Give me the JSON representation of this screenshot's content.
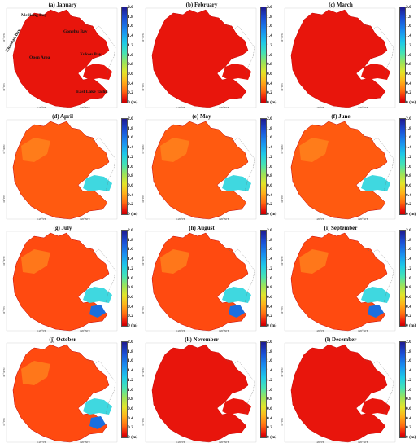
{
  "panels": [
    {
      "title": "(a) January",
      "scheme": "red"
    },
    {
      "title": "(b) February",
      "scheme": "red"
    },
    {
      "title": "(c) March",
      "scheme": "red"
    },
    {
      "title": "(d) April",
      "scheme": "orange"
    },
    {
      "title": "(e) May",
      "scheme": "orange"
    },
    {
      "title": "(f) June",
      "scheme": "orange"
    },
    {
      "title": "(g) July",
      "scheme": "mixed"
    },
    {
      "title": "(h) August",
      "scheme": "mixed"
    },
    {
      "title": "(i) September",
      "scheme": "mixed"
    },
    {
      "title": "(j) October",
      "scheme": "mixed"
    },
    {
      "title": "(k) November",
      "scheme": "red"
    },
    {
      "title": "(l) December",
      "scheme": "red"
    }
  ],
  "colorbar": {
    "ticks": [
      "2.0",
      "1.8",
      "1.6",
      "1.4",
      "1.2",
      "1.0",
      "0.8",
      "0.6",
      "0.4",
      "0.2",
      "0 (m)"
    ]
  },
  "region_labels": {
    "meiliang_bay": "Meiliang Bay",
    "zhushan_bay": "Zhushan Bay",
    "gonghu_bay": "Gonghu Bay",
    "open_area": "Open Area",
    "xukou_bay": "Xukou Bay",
    "east_lake_taihu": "East Lake Taihu"
  },
  "axis_labels": {
    "lon1": "120°0'E",
    "lon2": "120°30'E",
    "lat1": "31°30'N",
    "lat2": "31°0'N"
  },
  "colors": {
    "lake_red": "#e8150c",
    "lake_orange": "#ff5a10",
    "shallow_cyan": "#3fd8e0",
    "shallow_blue": "#1a6fe0",
    "shore_line": "#666666"
  }
}
